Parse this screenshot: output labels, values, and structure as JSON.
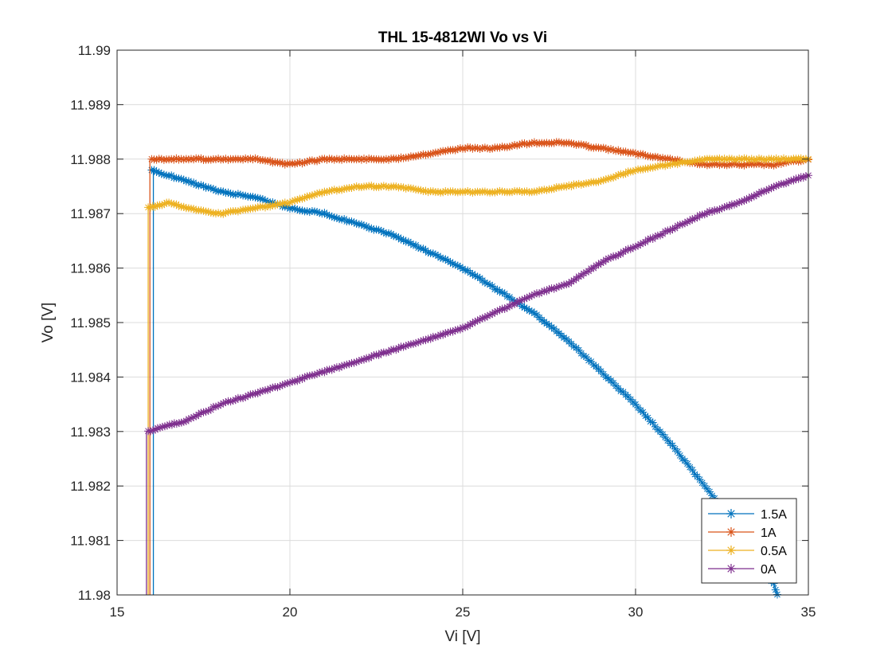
{
  "chart_data": {
    "type": "line",
    "title": "THL 15-4812WI Vo vs Vi",
    "xlabel": "Vi [V]",
    "ylabel": "Vo [V]",
    "xlim": [
      15,
      35
    ],
    "ylim": [
      11.98,
      11.99
    ],
    "x_ticks": [
      "15",
      "20",
      "25",
      "30",
      "35"
    ],
    "y_ticks": [
      "11.98",
      "11.981",
      "11.982",
      "11.983",
      "11.984",
      "11.985",
      "11.986",
      "11.987",
      "11.988",
      "11.989",
      "11.99"
    ],
    "grid": true,
    "legend_position": "bottom-right",
    "marker": "asterisk",
    "series": [
      {
        "name": "1.5A",
        "color": "#0072BD",
        "drop_to_floor_at": 16.05,
        "points": [
          [
            16.0,
            11.9878
          ],
          [
            17,
            11.9876
          ],
          [
            18,
            11.9874
          ],
          [
            19,
            11.9873
          ],
          [
            20,
            11.9871
          ],
          [
            21,
            11.987
          ],
          [
            22,
            11.9868
          ],
          [
            23,
            11.9866
          ],
          [
            24,
            11.9863
          ],
          [
            25,
            11.986
          ],
          [
            26,
            11.9856
          ],
          [
            27,
            11.9852
          ],
          [
            28,
            11.9847
          ],
          [
            29,
            11.9841
          ],
          [
            30,
            11.9835
          ],
          [
            31,
            11.9828
          ],
          [
            32,
            11.982
          ],
          [
            33,
            11.9812
          ],
          [
            34,
            11.9802
          ],
          [
            34.1,
            11.98
          ]
        ]
      },
      {
        "name": "1A",
        "color": "#D95319",
        "drop_to_floor_at": 15.95,
        "points": [
          [
            16.0,
            11.988
          ],
          [
            17,
            11.988
          ],
          [
            18,
            11.988
          ],
          [
            19,
            11.988
          ],
          [
            20,
            11.9879
          ],
          [
            21,
            11.988
          ],
          [
            22,
            11.988
          ],
          [
            23,
            11.988
          ],
          [
            24,
            11.9881
          ],
          [
            25,
            11.9882
          ],
          [
            26,
            11.9882
          ],
          [
            27,
            11.9883
          ],
          [
            28,
            11.9883
          ],
          [
            29,
            11.9882
          ],
          [
            30,
            11.9881
          ],
          [
            31,
            11.988
          ],
          [
            32,
            11.9879
          ],
          [
            33,
            11.9879
          ],
          [
            34,
            11.9879
          ],
          [
            35,
            11.988
          ]
        ]
      },
      {
        "name": "0.5A",
        "color": "#EDB120",
        "drop_to_floor_at": 15.9,
        "points": [
          [
            15.9,
            11.9871
          ],
          [
            16.5,
            11.9872
          ],
          [
            17,
            11.9871
          ],
          [
            18,
            11.987
          ],
          [
            19,
            11.9871
          ],
          [
            20,
            11.9872
          ],
          [
            21,
            11.9874
          ],
          [
            22,
            11.9875
          ],
          [
            23,
            11.9875
          ],
          [
            24,
            11.9874
          ],
          [
            25,
            11.9874
          ],
          [
            26,
            11.9874
          ],
          [
            27,
            11.9874
          ],
          [
            28,
            11.9875
          ],
          [
            29,
            11.9876
          ],
          [
            30,
            11.9878
          ],
          [
            31,
            11.9879
          ],
          [
            32,
            11.988
          ],
          [
            33,
            11.988
          ],
          [
            34,
            11.988
          ],
          [
            35,
            11.988
          ]
        ]
      },
      {
        "name": "0A",
        "color": "#7E2F8E",
        "drop_to_floor_at": 15.85,
        "points": [
          [
            15.9,
            11.983
          ],
          [
            17,
            11.9832
          ],
          [
            18,
            11.9835
          ],
          [
            19,
            11.9837
          ],
          [
            20,
            11.9839
          ],
          [
            21,
            11.9841
          ],
          [
            22,
            11.9843
          ],
          [
            23,
            11.9845
          ],
          [
            24,
            11.9847
          ],
          [
            25,
            11.9849
          ],
          [
            26,
            11.9852
          ],
          [
            27,
            11.9855
          ],
          [
            28,
            11.9857
          ],
          [
            29,
            11.9861
          ],
          [
            30,
            11.9864
          ],
          [
            31,
            11.9867
          ],
          [
            32,
            11.987
          ],
          [
            33,
            11.9872
          ],
          [
            34,
            11.9875
          ],
          [
            35,
            11.9877
          ]
        ]
      }
    ]
  }
}
